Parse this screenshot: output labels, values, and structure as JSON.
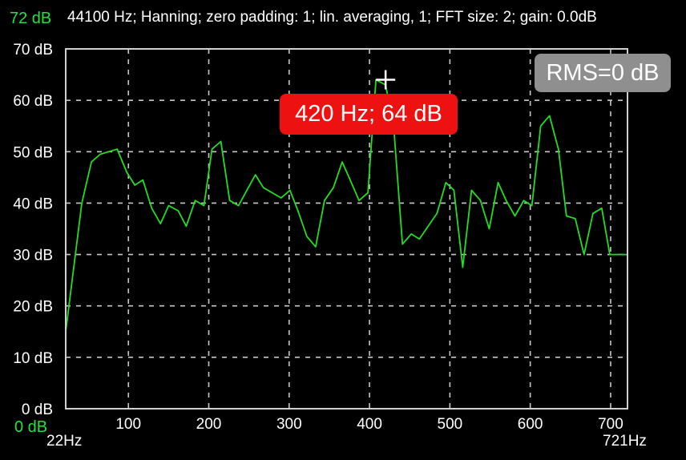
{
  "header": {
    "info": "44100 Hz; Hanning; zero padding: 1; lin. averaging, 1; FFT size: 2; gain: 0.0dB",
    "max_level": "72 dB",
    "min_level": "0 dB"
  },
  "readouts": {
    "rms": "RMS=0 dB",
    "peak": "420 Hz; 64 dB"
  },
  "axis_range_labels": {
    "x_start": "22Hz",
    "x_end": "721Hz"
  },
  "colors": {
    "background": "#000000",
    "trace": "#22dd22",
    "level_text": "#22e33a",
    "grid": "#c8c8c8",
    "rms_badge": "#8f8f8f",
    "peak_badge": "#ee1111",
    "cursor": "#ffffff"
  },
  "chart_data": {
    "type": "line",
    "xlim": [
      22,
      721
    ],
    "ylim": [
      0,
      72
    ],
    "grid": true,
    "x_ticks": [
      100,
      200,
      300,
      400,
      500,
      600,
      700
    ],
    "y_ticks": [
      0,
      10,
      20,
      30,
      40,
      50,
      60,
      70
    ],
    "y_tick_labels": [
      "0 dB",
      "10 dB",
      "20 dB",
      "30 dB",
      "40 dB",
      "50 dB",
      "60 dB",
      "70 dB"
    ],
    "cursor": {
      "x": 420,
      "y": 64
    },
    "series": [
      {
        "x": [
          22,
          42,
          54,
          65,
          86,
          98,
          108,
          118,
          129,
          140,
          150,
          162,
          172,
          183,
          194,
          204,
          215,
          226,
          237,
          258,
          268,
          290,
          301,
          311,
          322,
          333,
          344,
          355,
          366,
          376,
          387,
          398,
          408,
          420,
          430,
          441,
          452,
          462,
          473,
          484,
          495,
          505,
          516,
          527,
          538,
          549,
          560,
          570,
          581,
          592,
          602,
          613,
          624,
          635,
          645,
          656,
          667,
          678,
          689,
          699,
          710,
          721
        ],
        "y": [
          15,
          40,
          48,
          49.5,
          50.5,
          46,
          43.5,
          44.5,
          39,
          36,
          39.5,
          38.5,
          35.5,
          40.5,
          39.5,
          50.5,
          52,
          40.5,
          39.5,
          45.5,
          43,
          41,
          42.5,
          38.5,
          33.5,
          31.5,
          40.5,
          43,
          48,
          44.5,
          40.5,
          42,
          64,
          63,
          55,
          32,
          34,
          33,
          35.5,
          38,
          44,
          42.5,
          27.5,
          42.5,
          40.5,
          35,
          44,
          40.5,
          37.5,
          40.5,
          39.5,
          55,
          57,
          50.5,
          37.5,
          37,
          30,
          38,
          39,
          30,
          30,
          30
        ]
      }
    ]
  }
}
